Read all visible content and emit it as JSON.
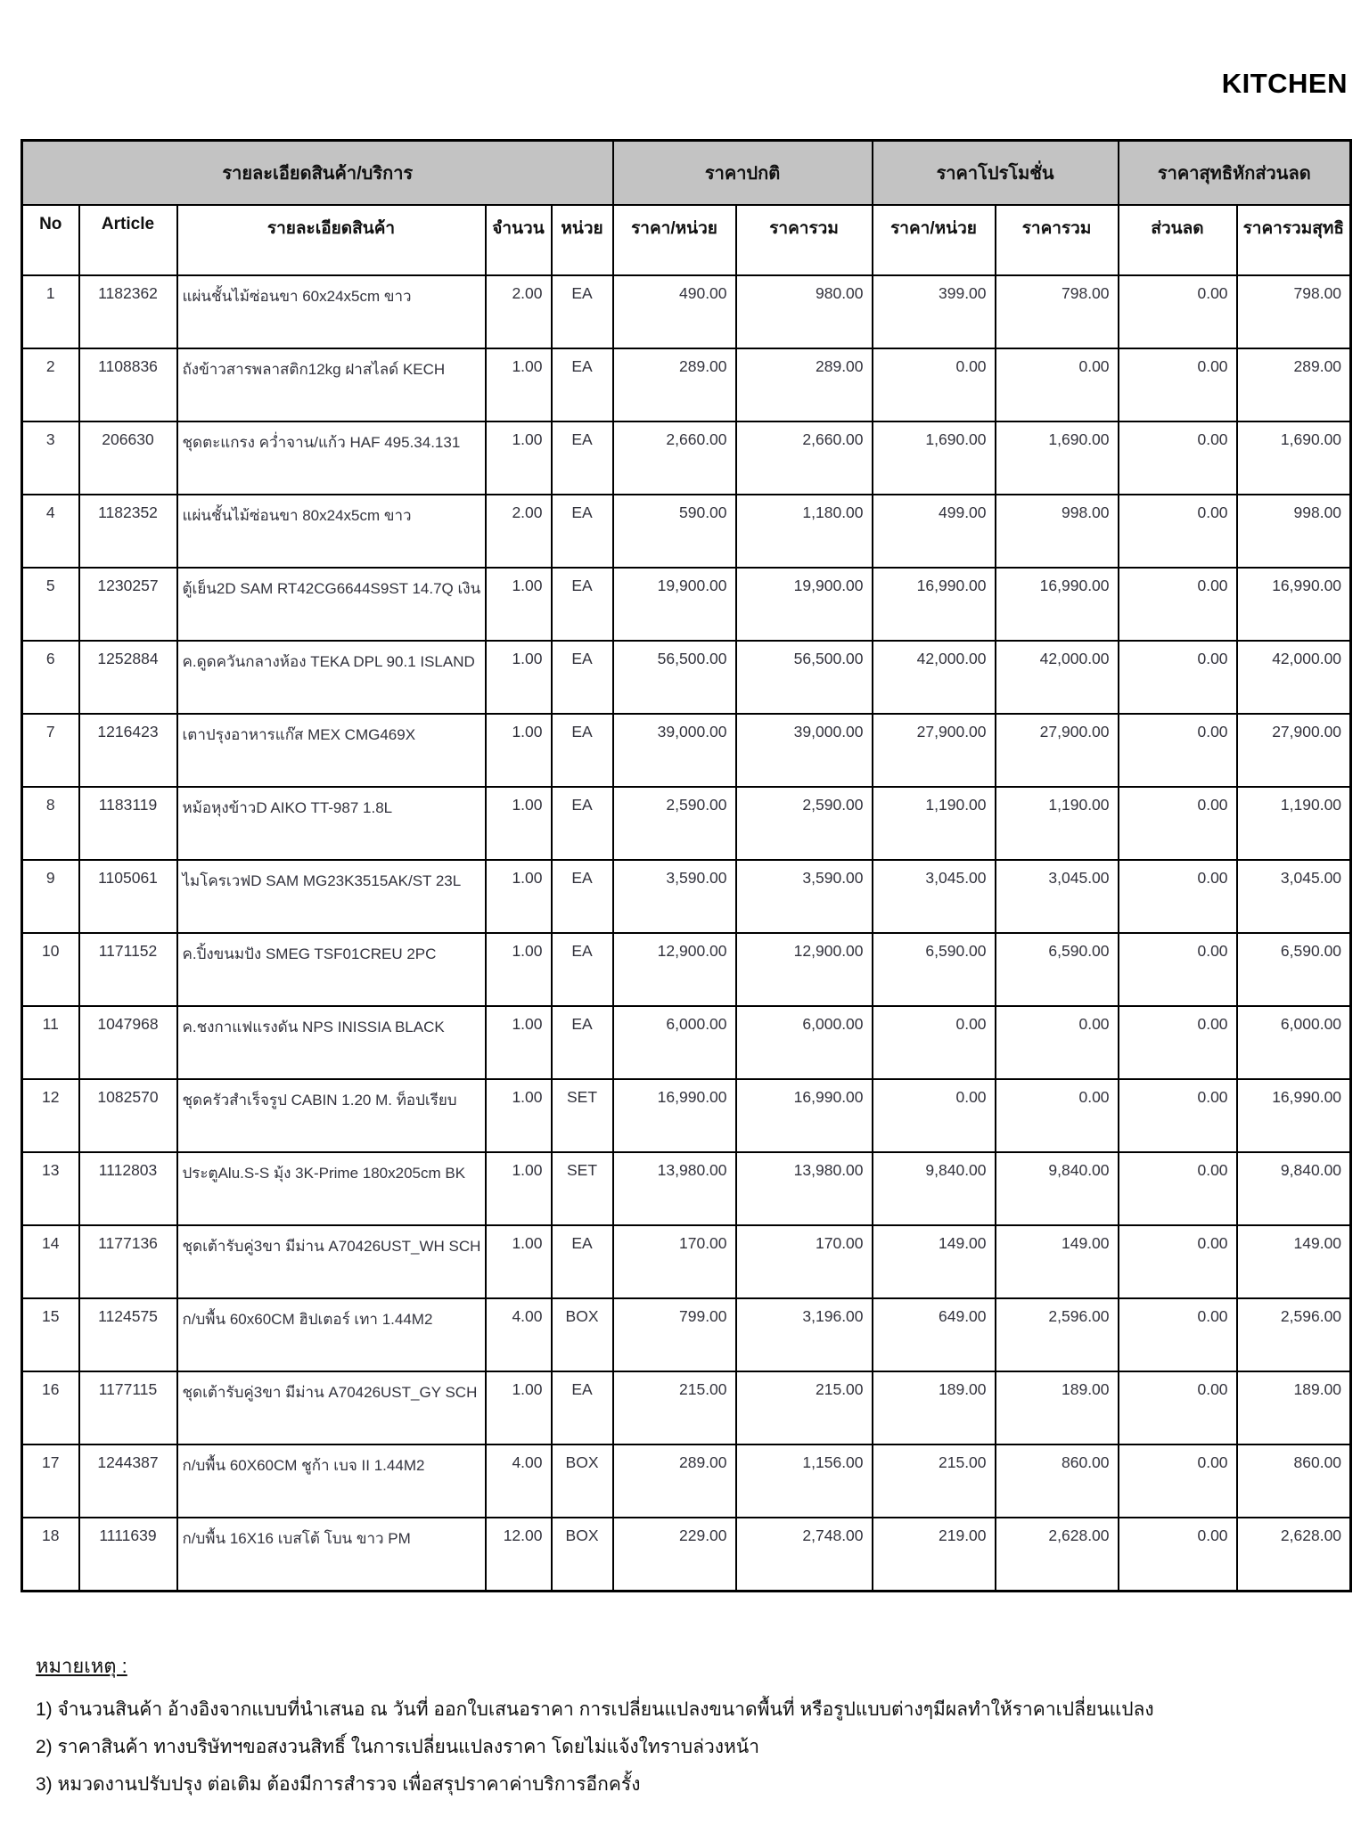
{
  "page_title": "KITCHEN",
  "table": {
    "group_headers": [
      {
        "label": "รายละเอียดสินค้า/บริการ",
        "span": 5
      },
      {
        "label": "ราคาปกติ",
        "span": 2
      },
      {
        "label": "ราคาโปรโมชั่น",
        "span": 2
      },
      {
        "label": "ราคาสุทธิหักส่วนลด",
        "span": 2
      }
    ],
    "columns": [
      "No",
      "Article",
      "รายละเอียดสินค้า",
      "จำนวน",
      "หน่วย",
      "ราคา/หน่วย",
      "ราคารวม",
      "ราคา/หน่วย",
      "ราคารวม",
      "ส่วนลด",
      "ราคารวมสุทธิ"
    ],
    "rows": [
      {
        "no": "1",
        "article": "1182362",
        "description": "แผ่นชั้นไม้ซ่อนขา 60x24x5cm ขาว",
        "qty": "2.00",
        "unit": "EA",
        "normal_unit": "490.00",
        "normal_total": "980.00",
        "promo_unit": "399.00",
        "promo_total": "798.00",
        "discount": "0.00",
        "net_total": "798.00"
      },
      {
        "no": "2",
        "article": "1108836",
        "description": "ถังข้าวสารพลาสติก12kg ฝาสไลด์ KECH",
        "qty": "1.00",
        "unit": "EA",
        "normal_unit": "289.00",
        "normal_total": "289.00",
        "promo_unit": "0.00",
        "promo_total": "0.00",
        "discount": "0.00",
        "net_total": "289.00"
      },
      {
        "no": "3",
        "article": "206630",
        "description": "ชุดตะแกรง คว่ำจาน/แก้ว HAF 495.34.131",
        "qty": "1.00",
        "unit": "EA",
        "normal_unit": "2,660.00",
        "normal_total": "2,660.00",
        "promo_unit": "1,690.00",
        "promo_total": "1,690.00",
        "discount": "0.00",
        "net_total": "1,690.00"
      },
      {
        "no": "4",
        "article": "1182352",
        "description": "แผ่นชั้นไม้ซ่อนขา 80x24x5cm ขาว",
        "qty": "2.00",
        "unit": "EA",
        "normal_unit": "590.00",
        "normal_total": "1,180.00",
        "promo_unit": "499.00",
        "promo_total": "998.00",
        "discount": "0.00",
        "net_total": "998.00"
      },
      {
        "no": "5",
        "article": "1230257",
        "description": "ตู้เย็น2D SAM RT42CG6644S9ST 14.7Q เงิน",
        "qty": "1.00",
        "unit": "EA",
        "normal_unit": "19,900.00",
        "normal_total": "19,900.00",
        "promo_unit": "16,990.00",
        "promo_total": "16,990.00",
        "discount": "0.00",
        "net_total": "16,990.00"
      },
      {
        "no": "6",
        "article": "1252884",
        "description": "ค.ดูดควันกลางห้อง TEKA DPL 90.1 ISLAND",
        "qty": "1.00",
        "unit": "EA",
        "normal_unit": "56,500.00",
        "normal_total": "56,500.00",
        "promo_unit": "42,000.00",
        "promo_total": "42,000.00",
        "discount": "0.00",
        "net_total": "42,000.00"
      },
      {
        "no": "7",
        "article": "1216423",
        "description": "เตาปรุงอาหารแก๊ส MEX CMG469X",
        "qty": "1.00",
        "unit": "EA",
        "normal_unit": "39,000.00",
        "normal_total": "39,000.00",
        "promo_unit": "27,900.00",
        "promo_total": "27,900.00",
        "discount": "0.00",
        "net_total": "27,900.00"
      },
      {
        "no": "8",
        "article": "1183119",
        "description": "หม้อหุงข้าวD AIKO TT-987 1.8L",
        "qty": "1.00",
        "unit": "EA",
        "normal_unit": "2,590.00",
        "normal_total": "2,590.00",
        "promo_unit": "1,190.00",
        "promo_total": "1,190.00",
        "discount": "0.00",
        "net_total": "1,190.00"
      },
      {
        "no": "9",
        "article": "1105061",
        "description": "ไมโครเวฟD SAM MG23K3515AK/ST 23L",
        "qty": "1.00",
        "unit": "EA",
        "normal_unit": "3,590.00",
        "normal_total": "3,590.00",
        "promo_unit": "3,045.00",
        "promo_total": "3,045.00",
        "discount": "0.00",
        "net_total": "3,045.00"
      },
      {
        "no": "10",
        "article": "1171152",
        "description": "ค.ปิ้งขนมปัง SMEG TSF01CREU 2PC",
        "qty": "1.00",
        "unit": "EA",
        "normal_unit": "12,900.00",
        "normal_total": "12,900.00",
        "promo_unit": "6,590.00",
        "promo_total": "6,590.00",
        "discount": "0.00",
        "net_total": "6,590.00"
      },
      {
        "no": "11",
        "article": "1047968",
        "description": "ค.ชงกาแฟแรงดัน NPS INISSIA BLACK",
        "qty": "1.00",
        "unit": "EA",
        "normal_unit": "6,000.00",
        "normal_total": "6,000.00",
        "promo_unit": "0.00",
        "promo_total": "0.00",
        "discount": "0.00",
        "net_total": "6,000.00"
      },
      {
        "no": "12",
        "article": "1082570",
        "description": "ชุดครัวสำเร็จรูป CABIN 1.20 M. ท็อปเรียบ",
        "qty": "1.00",
        "unit": "SET",
        "normal_unit": "16,990.00",
        "normal_total": "16,990.00",
        "promo_unit": "0.00",
        "promo_total": "0.00",
        "discount": "0.00",
        "net_total": "16,990.00"
      },
      {
        "no": "13",
        "article": "1112803",
        "description": "ประตูAlu.S-S มุ้ง 3K-Prime 180x205cm BK",
        "qty": "1.00",
        "unit": "SET",
        "normal_unit": "13,980.00",
        "normal_total": "13,980.00",
        "promo_unit": "9,840.00",
        "promo_total": "9,840.00",
        "discount": "0.00",
        "net_total": "9,840.00"
      },
      {
        "no": "14",
        "article": "1177136",
        "description": "ชุดเต้ารับคู่3ขา มีม่าน A70426UST_WH SCH",
        "qty": "1.00",
        "unit": "EA",
        "normal_unit": "170.00",
        "normal_total": "170.00",
        "promo_unit": "149.00",
        "promo_total": "149.00",
        "discount": "0.00",
        "net_total": "149.00"
      },
      {
        "no": "15",
        "article": "1124575",
        "description": "ก/บพื้น 60x60CM ฮิปเตอร์ เทา 1.44M2",
        "qty": "4.00",
        "unit": "BOX",
        "normal_unit": "799.00",
        "normal_total": "3,196.00",
        "promo_unit": "649.00",
        "promo_total": "2,596.00",
        "discount": "0.00",
        "net_total": "2,596.00"
      },
      {
        "no": "16",
        "article": "1177115",
        "description": "ชุดเต้ารับคู่3ขา มีม่าน A70426UST_GY SCH",
        "qty": "1.00",
        "unit": "EA",
        "normal_unit": "215.00",
        "normal_total": "215.00",
        "promo_unit": "189.00",
        "promo_total": "189.00",
        "discount": "0.00",
        "net_total": "189.00"
      },
      {
        "no": "17",
        "article": "1244387",
        "description": "ก/บพื้น 60X60CM ชูก้า เบจ II 1.44M2",
        "qty": "4.00",
        "unit": "BOX",
        "normal_unit": "289.00",
        "normal_total": "1,156.00",
        "promo_unit": "215.00",
        "promo_total": "860.00",
        "discount": "0.00",
        "net_total": "860.00"
      },
      {
        "no": "18",
        "article": "1111639",
        "description": "ก/บพื้น 16X16 เบสโต้ โบน ขาว PM",
        "qty": "12.00",
        "unit": "BOX",
        "normal_unit": "229.00",
        "normal_total": "2,748.00",
        "promo_unit": "219.00",
        "promo_total": "2,628.00",
        "discount": "0.00",
        "net_total": "2,628.00"
      }
    ]
  },
  "notes": {
    "heading": "หมายเหตุ :",
    "items": [
      "1) จำนวนสินค้า อ้างอิงจากแบบที่นำเสนอ ณ วันที่ ออกใบเสนอราคา การเปลี่ยนแปลงขนาดพื้นที่ หรือรูปแบบต่างๆมีผลทำให้ราคาเปลี่ยนแปลง",
      "2) ราคาสินค้า ทางบริษัทฯขอสงวนสิทธิ์ ในการเปลี่ยนแปลงราคา โดยไม่แจ้งใทราบล่วงหน้า",
      "3) หมวดงานปรับปรุง ต่อเติม ต้องมีการสำรวจ เพื่อสรุปราคาค่าบริการอีกครั้ง"
    ]
  }
}
